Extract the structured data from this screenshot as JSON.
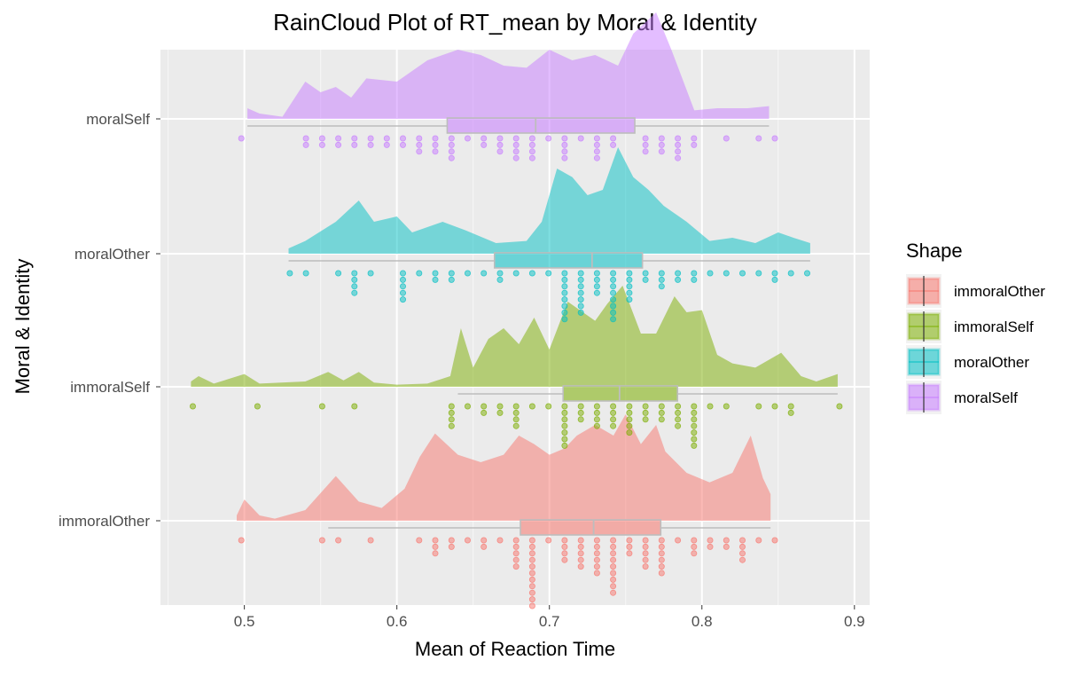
{
  "chart_data": {
    "type": "raincloud",
    "title": "RainCloud Plot of RT_mean by Moral & Identity",
    "xlabel": "Mean of Reaction Time",
    "ylabel": "Moral & Identity",
    "xlim": [
      0.445,
      0.91
    ],
    "x_ticks": [
      0.5,
      0.6,
      0.7,
      0.8,
      0.9
    ],
    "x_tick_labels": [
      "0.5",
      "0.6",
      "0.7",
      "0.8",
      "0.9"
    ],
    "grid": true,
    "legend": {
      "title": "Shape",
      "position": "right",
      "entries": [
        "immoralOther",
        "immoralSelf",
        "moralOther",
        "moralSelf"
      ]
    },
    "series": [
      {
        "name": "immoralOther",
        "category": "immoralOther",
        "color": "#F8766D",
        "min": 0.555,
        "q1": 0.681,
        "median": 0.729,
        "q3": 0.773,
        "max": 0.845,
        "outliers": [
          0.495
        ],
        "points": [
          0.495,
          0.555,
          0.562,
          0.585,
          0.61,
          0.62,
          0.62,
          0.628,
          0.635,
          0.635,
          0.648,
          0.66,
          0.66,
          0.672,
          0.675,
          0.675,
          0.675,
          0.675,
          0.68,
          0.685,
          0.69,
          0.69,
          0.69,
          0.69,
          0.693,
          0.693,
          0.693,
          0.693,
          0.693,
          0.693,
          0.7,
          0.705,
          0.71,
          0.71,
          0.71,
          0.718,
          0.718,
          0.725,
          0.725,
          0.725,
          0.73,
          0.73,
          0.73,
          0.73,
          0.73,
          0.73,
          0.738,
          0.738,
          0.738,
          0.745,
          0.745,
          0.745,
          0.745,
          0.745,
          0.745,
          0.75,
          0.755,
          0.755,
          0.76,
          0.765,
          0.765,
          0.765,
          0.765,
          0.77,
          0.77,
          0.776,
          0.776,
          0.776,
          0.776,
          0.782,
          0.79,
          0.8,
          0.8,
          0.805,
          0.81,
          0.815,
          0.82,
          0.825,
          0.83,
          0.83,
          0.83,
          0.838,
          0.845
        ],
        "density": [
          [
            0.495,
            0.05
          ],
          [
            0.5,
            0.2
          ],
          [
            0.51,
            0.05
          ],
          [
            0.52,
            0.02
          ],
          [
            0.54,
            0.1
          ],
          [
            0.56,
            0.42
          ],
          [
            0.575,
            0.18
          ],
          [
            0.59,
            0.12
          ],
          [
            0.605,
            0.3
          ],
          [
            0.615,
            0.6
          ],
          [
            0.625,
            0.82
          ],
          [
            0.64,
            0.62
          ],
          [
            0.655,
            0.55
          ],
          [
            0.67,
            0.62
          ],
          [
            0.68,
            0.8
          ],
          [
            0.69,
            0.72
          ],
          [
            0.7,
            0.62
          ],
          [
            0.71,
            0.68
          ],
          [
            0.718,
            0.8
          ],
          [
            0.73,
            0.9
          ],
          [
            0.742,
            0.8
          ],
          [
            0.75,
            1.0
          ],
          [
            0.76,
            0.72
          ],
          [
            0.77,
            0.9
          ],
          [
            0.776,
            0.65
          ],
          [
            0.79,
            0.45
          ],
          [
            0.805,
            0.36
          ],
          [
            0.82,
            0.45
          ],
          [
            0.832,
            0.8
          ],
          [
            0.84,
            0.4
          ],
          [
            0.845,
            0.25
          ]
        ]
      },
      {
        "name": "immoralSelf",
        "category": "immoralSelf",
        "color": "#7CAE00",
        "min": 0.64,
        "q1": 0.709,
        "median": 0.746,
        "q3": 0.784,
        "max": 0.889,
        "outliers": [
          0.465,
          0.504,
          0.554,
          0.574
        ],
        "points": [
          0.465,
          0.504,
          0.554,
          0.574,
          0.64,
          0.64,
          0.64,
          0.64,
          0.65,
          0.66,
          0.662,
          0.668,
          0.668,
          0.678,
          0.678,
          0.678,
          0.678,
          0.69,
          0.7,
          0.705,
          0.708,
          0.708,
          0.708,
          0.715,
          0.715,
          0.715,
          0.72,
          0.72,
          0.725,
          0.73,
          0.73,
          0.735,
          0.735,
          0.74,
          0.742,
          0.742,
          0.742,
          0.75,
          0.75,
          0.75,
          0.75,
          0.755,
          0.76,
          0.765,
          0.765,
          0.77,
          0.775,
          0.775,
          0.78,
          0.78,
          0.785,
          0.785,
          0.79,
          0.79,
          0.795,
          0.795,
          0.8,
          0.8,
          0.8,
          0.81,
          0.82,
          0.835,
          0.85,
          0.855,
          0.855,
          0.889
        ],
        "density": [
          [
            0.465,
            0.05
          ],
          [
            0.47,
            0.1
          ],
          [
            0.48,
            0.03
          ],
          [
            0.5,
            0.12
          ],
          [
            0.51,
            0.03
          ],
          [
            0.54,
            0.05
          ],
          [
            0.555,
            0.14
          ],
          [
            0.565,
            0.06
          ],
          [
            0.575,
            0.14
          ],
          [
            0.585,
            0.04
          ],
          [
            0.6,
            0.02
          ],
          [
            0.62,
            0.03
          ],
          [
            0.635,
            0.1
          ],
          [
            0.642,
            0.55
          ],
          [
            0.65,
            0.18
          ],
          [
            0.66,
            0.45
          ],
          [
            0.67,
            0.55
          ],
          [
            0.68,
            0.4
          ],
          [
            0.69,
            0.65
          ],
          [
            0.7,
            0.35
          ],
          [
            0.712,
            0.8
          ],
          [
            0.72,
            0.72
          ],
          [
            0.73,
            0.62
          ],
          [
            0.738,
            0.78
          ],
          [
            0.748,
            0.95
          ],
          [
            0.76,
            0.5
          ],
          [
            0.77,
            0.5
          ],
          [
            0.782,
            0.85
          ],
          [
            0.79,
            0.7
          ],
          [
            0.8,
            0.72
          ],
          [
            0.81,
            0.3
          ],
          [
            0.82,
            0.22
          ],
          [
            0.835,
            0.18
          ],
          [
            0.852,
            0.32
          ],
          [
            0.865,
            0.1
          ],
          [
            0.875,
            0.05
          ],
          [
            0.889,
            0.12
          ]
        ]
      },
      {
        "name": "moralOther",
        "category": "moralOther",
        "color": "#00BFC4",
        "min": 0.529,
        "q1": 0.664,
        "median": 0.728,
        "q3": 0.761,
        "max": 0.871,
        "outliers": [],
        "points": [
          0.529,
          0.54,
          0.565,
          0.575,
          0.575,
          0.575,
          0.575,
          0.58,
          0.6,
          0.6,
          0.6,
          0.6,
          0.6,
          0.61,
          0.62,
          0.63,
          0.64,
          0.64,
          0.65,
          0.66,
          0.665,
          0.67,
          0.68,
          0.69,
          0.7,
          0.705,
          0.705,
          0.705,
          0.705,
          0.705,
          0.712,
          0.712,
          0.712,
          0.718,
          0.718,
          0.718,
          0.723,
          0.723,
          0.723,
          0.723,
          0.73,
          0.73,
          0.735,
          0.735,
          0.74,
          0.74,
          0.74,
          0.74,
          0.74,
          0.745,
          0.745,
          0.745,
          0.75,
          0.75,
          0.755,
          0.755,
          0.755,
          0.76,
          0.765,
          0.77,
          0.77,
          0.775,
          0.78,
          0.787,
          0.795,
          0.8,
          0.81,
          0.82,
          0.83,
          0.838,
          0.845,
          0.85,
          0.86,
          0.871
        ],
        "density": [
          [
            0.529,
            0.05
          ],
          [
            0.54,
            0.12
          ],
          [
            0.56,
            0.3
          ],
          [
            0.575,
            0.5
          ],
          [
            0.585,
            0.3
          ],
          [
            0.6,
            0.35
          ],
          [
            0.61,
            0.2
          ],
          [
            0.62,
            0.25
          ],
          [
            0.63,
            0.3
          ],
          [
            0.645,
            0.22
          ],
          [
            0.665,
            0.1
          ],
          [
            0.685,
            0.12
          ],
          [
            0.695,
            0.3
          ],
          [
            0.705,
            0.8
          ],
          [
            0.715,
            0.72
          ],
          [
            0.725,
            0.55
          ],
          [
            0.735,
            0.6
          ],
          [
            0.745,
            1.0
          ],
          [
            0.755,
            0.72
          ],
          [
            0.765,
            0.6
          ],
          [
            0.775,
            0.45
          ],
          [
            0.79,
            0.3
          ],
          [
            0.805,
            0.12
          ],
          [
            0.82,
            0.15
          ],
          [
            0.835,
            0.1
          ],
          [
            0.85,
            0.2
          ],
          [
            0.86,
            0.15
          ],
          [
            0.871,
            0.1
          ]
        ]
      },
      {
        "name": "moralSelf",
        "category": "moralSelf",
        "color": "#C77CFF",
        "min": 0.502,
        "q1": 0.633,
        "median": 0.691,
        "q3": 0.756,
        "max": 0.844,
        "outliers": [],
        "points": [
          0.502,
          0.54,
          0.54,
          0.548,
          0.548,
          0.56,
          0.56,
          0.57,
          0.57,
          0.58,
          0.58,
          0.59,
          0.595,
          0.6,
          0.6,
          0.61,
          0.615,
          0.615,
          0.62,
          0.63,
          0.63,
          0.64,
          0.64,
          0.64,
          0.64,
          0.65,
          0.655,
          0.66,
          0.665,
          0.665,
          0.67,
          0.675,
          0.675,
          0.675,
          0.68,
          0.685,
          0.69,
          0.69,
          0.69,
          0.7,
          0.705,
          0.705,
          0.71,
          0.715,
          0.72,
          0.73,
          0.73,
          0.73,
          0.735,
          0.74,
          0.745,
          0.76,
          0.76,
          0.765,
          0.77,
          0.77,
          0.775,
          0.78,
          0.785,
          0.785,
          0.785,
          0.79,
          0.8,
          0.82,
          0.84,
          0.844
        ],
        "density": [
          [
            0.502,
            0.1
          ],
          [
            0.51,
            0.05
          ],
          [
            0.525,
            0.02
          ],
          [
            0.54,
            0.35
          ],
          [
            0.55,
            0.25
          ],
          [
            0.56,
            0.3
          ],
          [
            0.57,
            0.2
          ],
          [
            0.58,
            0.38
          ],
          [
            0.6,
            0.35
          ],
          [
            0.62,
            0.55
          ],
          [
            0.64,
            0.65
          ],
          [
            0.655,
            0.6
          ],
          [
            0.67,
            0.5
          ],
          [
            0.685,
            0.48
          ],
          [
            0.7,
            0.65
          ],
          [
            0.715,
            0.55
          ],
          [
            0.73,
            0.6
          ],
          [
            0.745,
            0.5
          ],
          [
            0.755,
            0.8
          ],
          [
            0.77,
            1.0
          ],
          [
            0.78,
            0.65
          ],
          [
            0.795,
            0.08
          ],
          [
            0.81,
            0.1
          ],
          [
            0.83,
            0.1
          ],
          [
            0.844,
            0.12
          ]
        ]
      }
    ]
  }
}
